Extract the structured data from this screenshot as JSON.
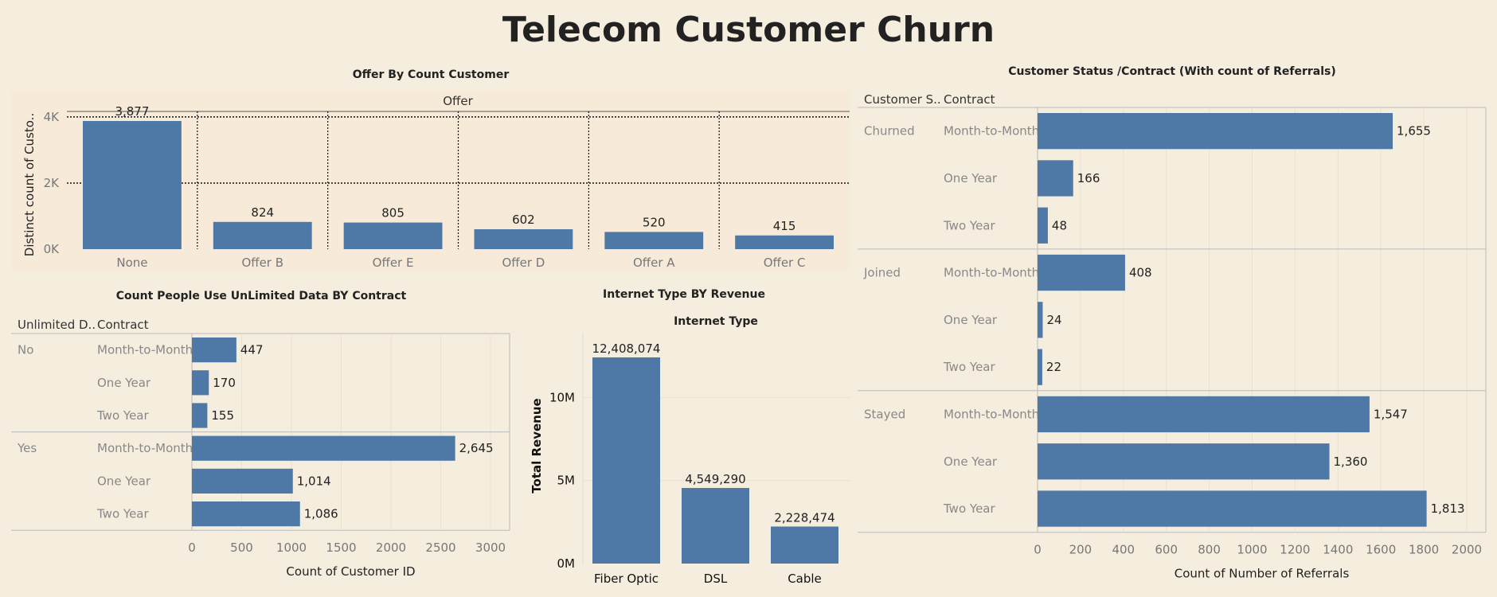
{
  "title": "Telecom Customer Churn",
  "colors": {
    "bar": "#4e79a7",
    "background": "#f5eddd",
    "panel_bg": "#f7ead8"
  },
  "chart_data": [
    {
      "id": "offer",
      "type": "bar",
      "title": "Offer By Count Customer",
      "header": "Offer",
      "ylabel": "Distinct count of Custo..",
      "yticks": [
        "0K",
        "2K",
        "4K"
      ],
      "ylim": [
        0,
        4000
      ],
      "categories": [
        "None",
        "Offer B",
        "Offer E",
        "Offer D",
        "Offer A",
        "Offer C"
      ],
      "values": [
        3877,
        824,
        805,
        602,
        520,
        415
      ],
      "value_labels": [
        "3,877",
        "824",
        "805",
        "602",
        "520",
        "415"
      ]
    },
    {
      "id": "unlimited",
      "type": "bar",
      "orientation": "horizontal",
      "title": "Count People Use UnLimited Data BY Contract",
      "row_headers": [
        "Unlimited D..",
        "Contract"
      ],
      "groups": [
        {
          "name": "No",
          "rows": [
            {
              "contract": "Month-to-Month",
              "value": 447,
              "label": "447"
            },
            {
              "contract": "One Year",
              "value": 170,
              "label": "170"
            },
            {
              "contract": "Two Year",
              "value": 155,
              "label": "155"
            }
          ]
        },
        {
          "name": "Yes",
          "rows": [
            {
              "contract": "Month-to-Month",
              "value": 2645,
              "label": "2,645"
            },
            {
              "contract": "One Year",
              "value": 1014,
              "label": "1,014"
            },
            {
              "contract": "Two Year",
              "value": 1086,
              "label": "1,086"
            }
          ]
        }
      ],
      "xticks": [
        "0",
        "500",
        "1000",
        "1500",
        "2000",
        "2500",
        "3000"
      ],
      "xlim": [
        0,
        3000
      ],
      "xlabel": "Count of Customer ID"
    },
    {
      "id": "internet",
      "type": "bar",
      "title": "Internet Type BY Revenue",
      "header": "Internet Type",
      "ylabel": "Total Revenue",
      "yticks": [
        "0M",
        "5M",
        "10M"
      ],
      "ylim": [
        0,
        12408074
      ],
      "categories": [
        "Fiber Optic",
        "DSL",
        "Cable"
      ],
      "values": [
        12408074,
        4549290,
        2228474
      ],
      "value_labels": [
        "12,408,074",
        "4,549,290",
        "2,228,474"
      ]
    },
    {
      "id": "status",
      "type": "bar",
      "orientation": "horizontal",
      "title": "Customer Status /Contract (With count of Referrals)",
      "row_headers": [
        "Customer S..",
        "Contract"
      ],
      "groups": [
        {
          "name": "Churned",
          "rows": [
            {
              "contract": "Month-to-Month",
              "value": 1655,
              "label": "1,655"
            },
            {
              "contract": "One Year",
              "value": 166,
              "label": "166"
            },
            {
              "contract": "Two Year",
              "value": 48,
              "label": "48"
            }
          ]
        },
        {
          "name": "Joined",
          "rows": [
            {
              "contract": "Month-to-Month",
              "value": 408,
              "label": "408"
            },
            {
              "contract": "One Year",
              "value": 24,
              "label": "24"
            },
            {
              "contract": "Two Year",
              "value": 22,
              "label": "22"
            }
          ]
        },
        {
          "name": "Stayed",
          "rows": [
            {
              "contract": "Month-to-Month",
              "value": 1547,
              "label": "1,547"
            },
            {
              "contract": "One Year",
              "value": 1360,
              "label": "1,360"
            },
            {
              "contract": "Two Year",
              "value": 1813,
              "label": "1,813"
            }
          ]
        }
      ],
      "xticks": [
        "0",
        "200",
        "400",
        "600",
        "800",
        "1000",
        "1200",
        "1400",
        "1600",
        "1800",
        "2000"
      ],
      "xlim": [
        0,
        2000
      ],
      "xlabel": "Count of Number of Referrals"
    }
  ]
}
